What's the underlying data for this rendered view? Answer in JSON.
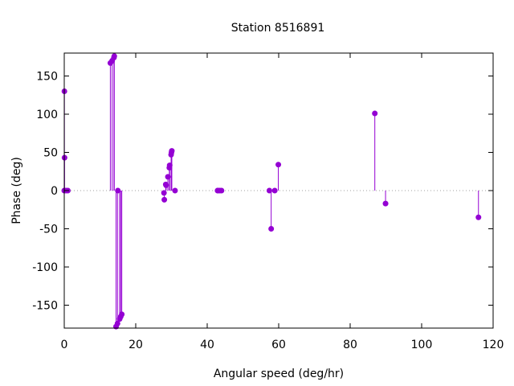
{
  "chart_data": {
    "type": "scatter",
    "title": "Station 8516891",
    "xlabel": "Angular speed (deg/hr)",
    "ylabel": "Phase (deg)",
    "xlim": [
      0,
      120
    ],
    "ylim": [
      -180,
      180
    ],
    "xticks": [
      0,
      20,
      40,
      60,
      80,
      100,
      120
    ],
    "yticks": [
      -150,
      -100,
      -50,
      0,
      50,
      100,
      150
    ],
    "zero_line": true,
    "grid": false,
    "style": "impulses-with-points",
    "colors": {
      "series": "#9400d3",
      "zero_line": "#a0a0a0"
    },
    "series": [
      {
        "x": [
          0.0,
          0.04,
          0.08,
          0.5,
          1.0,
          12.9,
          13.4,
          13.9,
          14.0,
          14.5,
          14.9,
          15.0,
          15.5,
          15.8,
          16.1,
          27.9,
          28.0,
          28.4,
          28.5,
          29.0,
          29.4,
          29.5,
          29.9,
          30.0,
          30.1,
          31.0,
          42.9,
          43.0,
          43.5,
          44.0,
          57.4,
          57.9,
          58.9,
          59.9,
          86.9,
          89.9,
          115.9
        ],
        "y": [
          0,
          130,
          43,
          0,
          0,
          167,
          170,
          174,
          176,
          -178,
          -174,
          0,
          -168,
          -165,
          -162,
          -3,
          -12,
          8,
          7,
          18,
          30,
          33,
          47,
          50,
          52,
          0,
          0,
          0,
          0,
          0,
          0,
          -50,
          0,
          34,
          101,
          -17,
          -35
        ]
      }
    ]
  }
}
